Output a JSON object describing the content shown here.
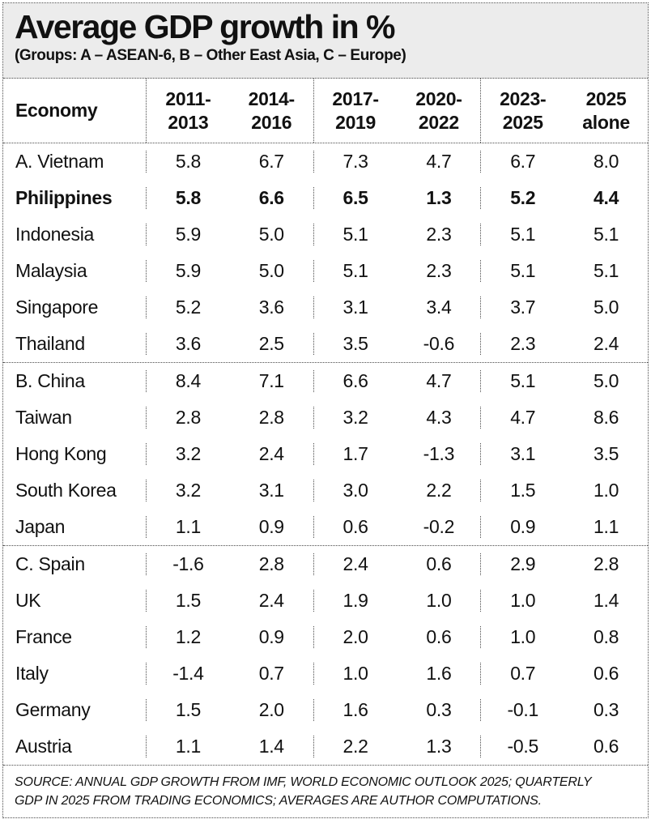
{
  "colors": {
    "title_band_bg": "#ececec",
    "border_dotted": "#4a4a4a",
    "text": "#111111",
    "background": "#ffffff"
  },
  "chart_data": {
    "type": "table",
    "title": "Average GDP growth in %",
    "subtitle": "(Groups: A – ASEAN-6, B – Other East Asia, C – Europe)",
    "columns": [
      "Economy",
      "2011-2013",
      "2014-2016",
      "2017-2019",
      "2020-2022",
      "2023-2025",
      "2025 alone"
    ],
    "header": {
      "economy": "Economy",
      "periods": [
        [
          "2011-",
          "2013"
        ],
        [
          "2014-",
          "2016"
        ],
        [
          "2017-",
          "2019"
        ],
        [
          "2020-",
          "2022"
        ],
        [
          "2023-",
          "2025"
        ],
        [
          "2025",
          "alone"
        ]
      ]
    },
    "groups": [
      {
        "group": "A",
        "group_label": "ASEAN-6",
        "rows": [
          {
            "economy": "A. Vietnam",
            "emphasis": false,
            "values": [
              "5.8",
              "6.7",
              "7.3",
              "4.7",
              "6.7",
              "8.0"
            ]
          },
          {
            "economy": "Philippines",
            "emphasis": true,
            "values": [
              "5.8",
              "6.6",
              "6.5",
              "1.3",
              "5.2",
              "4.4"
            ]
          },
          {
            "economy": "Indonesia",
            "emphasis": false,
            "values": [
              "5.9",
              "5.0",
              "5.1",
              "2.3",
              "5.1",
              "5.1"
            ]
          },
          {
            "economy": "Malaysia",
            "emphasis": false,
            "values": [
              "5.9",
              "5.0",
              "5.1",
              "2.3",
              "5.1",
              "5.1"
            ]
          },
          {
            "economy": "Singapore",
            "emphasis": false,
            "values": [
              "5.2",
              "3.6",
              "3.1",
              "3.4",
              "3.7",
              "5.0"
            ]
          },
          {
            "economy": "Thailand",
            "emphasis": false,
            "values": [
              "3.6",
              "2.5",
              "3.5",
              "-0.6",
              "2.3",
              "2.4"
            ]
          }
        ]
      },
      {
        "group": "B",
        "group_label": "Other East Asia",
        "rows": [
          {
            "economy": "B. China",
            "emphasis": false,
            "values": [
              "8.4",
              "7.1",
              "6.6",
              "4.7",
              "5.1",
              "5.0"
            ]
          },
          {
            "economy": "Taiwan",
            "emphasis": false,
            "values": [
              "2.8",
              "2.8",
              "3.2",
              "4.3",
              "4.7",
              "8.6"
            ]
          },
          {
            "economy": "Hong Kong",
            "emphasis": false,
            "values": [
              "3.2",
              "2.4",
              "1.7",
              "-1.3",
              "3.1",
              "3.5"
            ]
          },
          {
            "economy": "South Korea",
            "emphasis": false,
            "values": [
              "3.2",
              "3.1",
              "3.0",
              "2.2",
              "1.5",
              "1.0"
            ]
          },
          {
            "economy": "Japan",
            "emphasis": false,
            "values": [
              "1.1",
              "0.9",
              "0.6",
              "-0.2",
              "0.9",
              "1.1"
            ]
          }
        ]
      },
      {
        "group": "C",
        "group_label": "Europe",
        "rows": [
          {
            "economy": "C. Spain",
            "emphasis": false,
            "values": [
              "-1.6",
              "2.8",
              "2.4",
              "0.6",
              "2.9",
              "2.8"
            ]
          },
          {
            "economy": "UK",
            "emphasis": false,
            "values": [
              "1.5",
              "2.4",
              "1.9",
              "1.0",
              "1.0",
              "1.4"
            ]
          },
          {
            "economy": "France",
            "emphasis": false,
            "values": [
              "1.2",
              "0.9",
              "2.0",
              "0.6",
              "1.0",
              "0.8"
            ]
          },
          {
            "economy": "Italy",
            "emphasis": false,
            "values": [
              "-1.4",
              "0.7",
              "1.0",
              "1.6",
              "0.7",
              "0.6"
            ]
          },
          {
            "economy": "Germany",
            "emphasis": false,
            "values": [
              "1.5",
              "2.0",
              "1.6",
              "0.3",
              "-0.1",
              "0.3"
            ]
          },
          {
            "economy": "Austria",
            "emphasis": false,
            "values": [
              "1.1",
              "1.4",
              "2.2",
              "1.3",
              "-0.5",
              "0.6"
            ]
          }
        ]
      }
    ],
    "source": "SOURCE: ANNUAL GDP GROWTH FROM IMF, WORLD ECONOMIC OUTLOOK 2025; QUARTERLY GDP IN 2025 FROM TRADING ECONOMICS; AVERAGES ARE AUTHOR COMPUTATIONS."
  }
}
